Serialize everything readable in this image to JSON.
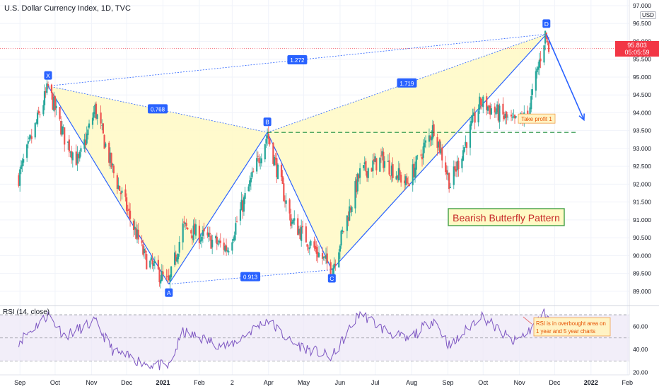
{
  "header": {
    "symbol_line": "U.S. Dollar Currency Index, 1D, TVC",
    "currency_badge": "USD",
    "last_price": "95.803",
    "countdown": "05:05:59"
  },
  "colors": {
    "up": "#26a69a",
    "down": "#ef5350",
    "pattern_line": "#2962ff",
    "pattern_fill": "#fff9c4",
    "tp_line": "#1e8e3e",
    "price_tag": "#f23645",
    "rsi_line": "#7e57c2",
    "rsi_band": "#ede7f6"
  },
  "chart_data": [
    {
      "type": "candlestick",
      "title": "U.S. Dollar Currency Index, 1D, TVC",
      "ylim": [
        88.6,
        97.0
      ],
      "y_ticks": [
        "89.000",
        "89.500",
        "90.000",
        "90.500",
        "91.000",
        "91.500",
        "92.000",
        "92.500",
        "93.000",
        "93.500",
        "94.000",
        "94.500",
        "95.000",
        "95.500",
        "96.000",
        "96.500",
        "97.000"
      ],
      "x_ticks": [
        "Sep",
        "Oct",
        "Nov",
        "Dec",
        "2021",
        "Feb",
        "2",
        "Apr",
        "May",
        "Jun",
        "Jul",
        "Aug",
        "Sep",
        "Oct",
        "Nov",
        "Dec",
        "2022",
        "Feb"
      ],
      "price_path": [
        {
          "date": "2020-08-31",
          "value": 92.2
        },
        {
          "date": "2020-09-25",
          "value": 94.7
        },
        {
          "date": "2020-10-09",
          "value": 93.3
        },
        {
          "date": "2020-10-21",
          "value": 92.6
        },
        {
          "date": "2020-11-04",
          "value": 94.1
        },
        {
          "date": "2020-11-20",
          "value": 92.3
        },
        {
          "date": "2020-12-17",
          "value": 89.9
        },
        {
          "date": "2021-01-06",
          "value": 89.2
        },
        {
          "date": "2021-01-18",
          "value": 90.8
        },
        {
          "date": "2021-02-25",
          "value": 90.2
        },
        {
          "date": "2021-03-31",
          "value": 93.4
        },
        {
          "date": "2021-04-20",
          "value": 91.0
        },
        {
          "date": "2021-05-25",
          "value": 89.6
        },
        {
          "date": "2021-06-18",
          "value": 92.3
        },
        {
          "date": "2021-07-07",
          "value": 92.7
        },
        {
          "date": "2021-07-28",
          "value": 92.0
        },
        {
          "date": "2021-08-20",
          "value": 93.6
        },
        {
          "date": "2021-09-03",
          "value": 92.0
        },
        {
          "date": "2021-09-29",
          "value": 94.3
        },
        {
          "date": "2021-10-27",
          "value": 93.7
        },
        {
          "date": "2021-11-08",
          "value": 93.9
        },
        {
          "date": "2021-11-23",
          "value": 96.2
        },
        {
          "date": "2021-11-26",
          "value": 95.8
        }
      ],
      "harmonic_pattern": {
        "name": "Bearish Butterfly Pattern",
        "points": [
          {
            "label": "X",
            "date": "2020-09-25",
            "value": 94.75
          },
          {
            "label": "A",
            "date": "2021-01-06",
            "value": 89.2
          },
          {
            "label": "B",
            "date": "2021-03-31",
            "value": 93.45
          },
          {
            "label": "C",
            "date": "2021-05-25",
            "value": 89.6
          },
          {
            "label": "D",
            "date": "2021-11-24",
            "value": 96.2
          }
        ],
        "ratios": [
          {
            "label": "0.768",
            "from": "X",
            "to": "B"
          },
          {
            "label": "0.913",
            "from": "A",
            "to": "C"
          },
          {
            "label": "1.719",
            "from": "B",
            "to": "D"
          },
          {
            "label": "1.272",
            "from": "X",
            "to": "D"
          }
        ],
        "projection": {
          "from_date": "2021-11-24",
          "from_value": 96.2,
          "to_date": "2021-12-26",
          "to_value": 93.8
        },
        "take_profit": {
          "label": "Take profit 1",
          "value": 93.45
        }
      }
    },
    {
      "type": "line",
      "title": "RSI (14, close)",
      "ylim": [
        18,
        78
      ],
      "y_ticks": [
        "20.00",
        "40.00",
        "60.00"
      ],
      "bands": [
        70,
        50,
        30
      ],
      "annotation": "RSI is in overbought area on 1 year and 5 year charts",
      "series_path": [
        {
          "date": "2020-08-31",
          "value": 47
        },
        {
          "date": "2020-09-25",
          "value": 70
        },
        {
          "date": "2020-10-09",
          "value": 52
        },
        {
          "date": "2020-11-04",
          "value": 64
        },
        {
          "date": "2020-11-20",
          "value": 38
        },
        {
          "date": "2020-12-17",
          "value": 28
        },
        {
          "date": "2021-01-06",
          "value": 25
        },
        {
          "date": "2021-01-18",
          "value": 55
        },
        {
          "date": "2021-02-25",
          "value": 42
        },
        {
          "date": "2021-03-31",
          "value": 66
        },
        {
          "date": "2021-04-20",
          "value": 46
        },
        {
          "date": "2021-05-25",
          "value": 33
        },
        {
          "date": "2021-06-18",
          "value": 72
        },
        {
          "date": "2021-07-07",
          "value": 58
        },
        {
          "date": "2021-07-28",
          "value": 48
        },
        {
          "date": "2021-08-20",
          "value": 66
        },
        {
          "date": "2021-09-03",
          "value": 42
        },
        {
          "date": "2021-09-29",
          "value": 70
        },
        {
          "date": "2021-10-27",
          "value": 46
        },
        {
          "date": "2021-11-08",
          "value": 55
        },
        {
          "date": "2021-11-23",
          "value": 72
        },
        {
          "date": "2021-11-26",
          "value": 68
        }
      ]
    }
  ]
}
